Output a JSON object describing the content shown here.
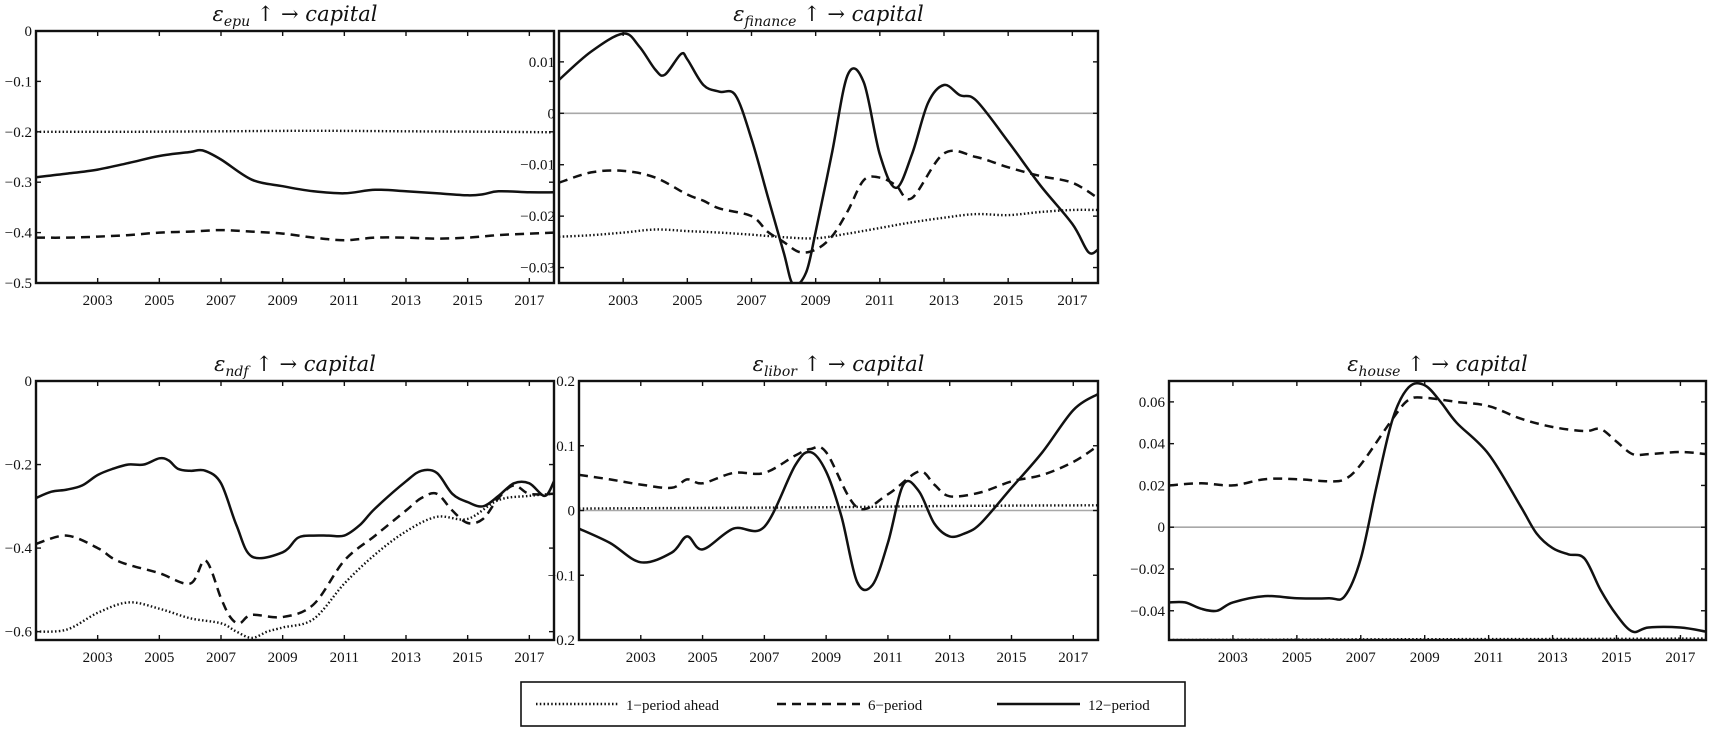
{
  "legend": {
    "entries": [
      {
        "label": "1−period ahead",
        "style": "dotted"
      },
      {
        "label": "6−period",
        "style": "dashed"
      },
      {
        "label": "12−period",
        "style": "solid"
      }
    ]
  },
  "colors": {
    "line": "#111111",
    "zero_line": "#a8a8a8",
    "frame": "#111111"
  },
  "chart_data": [
    {
      "type": "line",
      "title": {
        "prefix": "ε",
        "sub": "epu",
        "suffix": " ↑ →  capital"
      },
      "xlim": [
        2001,
        2017.8
      ],
      "ylim": [
        -0.5,
        0
      ],
      "yticks": [
        0,
        -0.1,
        -0.2,
        -0.3,
        -0.4,
        -0.5
      ],
      "yticklabels": [
        "0",
        "−0.1",
        "−0.2",
        "−0.3",
        "−0.4",
        "−0.5"
      ],
      "xticks": [
        2003,
        2005,
        2007,
        2009,
        2011,
        2013,
        2015,
        2017
      ],
      "zero_line": false,
      "series": [
        {
          "style": "dotted",
          "x": [
            2001,
            2004,
            2007,
            2010,
            2013,
            2016,
            2017.8
          ],
          "y": [
            -0.2,
            -0.2,
            -0.199,
            -0.198,
            -0.199,
            -0.2,
            -0.201
          ]
        },
        {
          "style": "dashed",
          "x": [
            2001,
            2002,
            2003,
            2004,
            2005,
            2006,
            2007,
            2008,
            2009,
            2010,
            2011,
            2012,
            2013,
            2014,
            2015,
            2016,
            2017,
            2017.8
          ],
          "y": [
            -0.41,
            -0.41,
            -0.408,
            -0.405,
            -0.4,
            -0.398,
            -0.395,
            -0.398,
            -0.402,
            -0.41,
            -0.415,
            -0.41,
            -0.41,
            -0.412,
            -0.41,
            -0.405,
            -0.402,
            -0.4
          ]
        },
        {
          "style": "solid",
          "x": [
            2001,
            2002,
            2003,
            2004,
            2005,
            2006,
            2006.4,
            2007,
            2008,
            2009,
            2010,
            2011,
            2012,
            2013,
            2014,
            2015,
            2015.5,
            2016,
            2017,
            2017.8
          ],
          "y": [
            -0.29,
            -0.283,
            -0.275,
            -0.262,
            -0.248,
            -0.24,
            -0.237,
            -0.255,
            -0.295,
            -0.308,
            -0.318,
            -0.322,
            -0.315,
            -0.318,
            -0.322,
            -0.326,
            -0.324,
            -0.318,
            -0.32,
            -0.32
          ]
        }
      ]
    },
    {
      "type": "line",
      "title": {
        "prefix": "ε",
        "sub": "finance",
        "suffix": " ↑ →  capital"
      },
      "xlim": [
        2001,
        2017.8
      ],
      "ylim": [
        -0.033,
        0.016
      ],
      "yticks": [
        0.01,
        0,
        -0.01,
        -0.02,
        -0.03
      ],
      "yticklabels": [
        "0.01",
        "0",
        "−0.01",
        "−0.02",
        "−0.03"
      ],
      "xticks": [
        2003,
        2005,
        2007,
        2009,
        2011,
        2013,
        2015,
        2017
      ],
      "zero_line": true,
      "series": [
        {
          "style": "dotted",
          "x": [
            2001,
            2002,
            2003,
            2004,
            2005,
            2006,
            2007,
            2008,
            2009,
            2010,
            2011,
            2012,
            2013,
            2014,
            2015,
            2016,
            2017,
            2017.8
          ],
          "y": [
            -0.024,
            -0.0237,
            -0.0232,
            -0.0226,
            -0.0229,
            -0.0232,
            -0.0236,
            -0.0241,
            -0.0243,
            -0.0234,
            -0.0223,
            -0.0212,
            -0.0203,
            -0.0196,
            -0.0198,
            -0.0192,
            -0.0188,
            -0.0188
          ]
        },
        {
          "style": "dashed",
          "x": [
            2001,
            2002,
            2003,
            2004,
            2005,
            2005.5,
            2006,
            2007,
            2007.5,
            2008,
            2008.5,
            2009,
            2009.5,
            2010,
            2010.5,
            2011,
            2011.5,
            2012,
            2013,
            2014,
            2015,
            2016,
            2017,
            2017.8
          ],
          "y": [
            -0.0135,
            -0.0115,
            -0.0112,
            -0.0125,
            -0.0158,
            -0.017,
            -0.0185,
            -0.02,
            -0.023,
            -0.025,
            -0.027,
            -0.0265,
            -0.024,
            -0.019,
            -0.013,
            -0.0125,
            -0.014,
            -0.0165,
            -0.0078,
            -0.0085,
            -0.0105,
            -0.0122,
            -0.0135,
            -0.0165
          ]
        },
        {
          "style": "solid",
          "x": [
            2001,
            2002,
            2003,
            2003.5,
            2004,
            2004.3,
            2004.8,
            2005,
            2005.5,
            2006,
            2006.5,
            2007,
            2007.5,
            2008,
            2008.3,
            2008.7,
            2009,
            2009.5,
            2010,
            2010.5,
            2011,
            2011.5,
            2012,
            2012.5,
            2013,
            2013.5,
            2014,
            2015,
            2016,
            2017,
            2017.5,
            2017.8
          ],
          "y": [
            0.0065,
            0.012,
            0.0155,
            0.013,
            0.0085,
            0.0075,
            0.0115,
            0.0105,
            0.0055,
            0.0042,
            0.0035,
            -0.005,
            -0.016,
            -0.027,
            -0.0333,
            -0.031,
            -0.023,
            -0.008,
            0.0075,
            0.006,
            -0.008,
            -0.0145,
            -0.008,
            0.002,
            0.0055,
            0.0035,
            0.0025,
            -0.0055,
            -0.014,
            -0.0215,
            -0.027,
            -0.0265
          ]
        }
      ]
    },
    {
      "type": "line",
      "title": {
        "prefix": "ε",
        "sub": "ndf",
        "suffix": " ↑ →  capital"
      },
      "xlim": [
        2001,
        2017.8
      ],
      "ylim": [
        -0.62,
        0
      ],
      "yticks": [
        0,
        -0.2,
        -0.4,
        -0.6
      ],
      "yticklabels": [
        "0",
        "−0.2",
        "−0.4",
        "−0.6"
      ],
      "xticks": [
        2003,
        2005,
        2007,
        2009,
        2011,
        2013,
        2015,
        2017
      ],
      "zero_line": false,
      "series": [
        {
          "style": "dotted",
          "x": [
            2001,
            2002,
            2003,
            2004,
            2005,
            2006,
            2007,
            2007.5,
            2008,
            2008.5,
            2009,
            2010,
            2011,
            2012,
            2013,
            2014,
            2015,
            2016,
            2017,
            2017.8
          ],
          "y": [
            -0.6,
            -0.595,
            -0.555,
            -0.53,
            -0.545,
            -0.568,
            -0.58,
            -0.6,
            -0.615,
            -0.6,
            -0.59,
            -0.57,
            -0.485,
            -0.415,
            -0.36,
            -0.325,
            -0.33,
            -0.285,
            -0.275,
            -0.27
          ]
        },
        {
          "style": "dashed",
          "x": [
            2001,
            2002,
            2003,
            2003.5,
            2004,
            2005,
            2006,
            2006.5,
            2007,
            2007.3,
            2007.6,
            2008,
            2009,
            2010,
            2011,
            2012,
            2013,
            2013.5,
            2014,
            2014.5,
            2015,
            2015.5,
            2016,
            2016.5,
            2017,
            2017.8
          ],
          "y": [
            -0.39,
            -0.37,
            -0.4,
            -0.425,
            -0.44,
            -0.46,
            -0.485,
            -0.43,
            -0.52,
            -0.565,
            -0.58,
            -0.56,
            -0.565,
            -0.535,
            -0.43,
            -0.37,
            -0.31,
            -0.28,
            -0.27,
            -0.31,
            -0.34,
            -0.33,
            -0.28,
            -0.25,
            -0.27,
            -0.27
          ]
        },
        {
          "style": "solid",
          "x": [
            2001,
            2001.5,
            2002,
            2002.5,
            2003,
            2003.5,
            2004,
            2004.5,
            2005,
            2005.3,
            2005.6,
            2006,
            2006.5,
            2007,
            2007.5,
            2008,
            2009,
            2009.5,
            2010,
            2010.5,
            2011,
            2011.5,
            2012,
            2013,
            2013.5,
            2014,
            2014.5,
            2015,
            2015.5,
            2016,
            2016.5,
            2017,
            2017.5,
            2017.8
          ],
          "y": [
            -0.28,
            -0.265,
            -0.26,
            -0.25,
            -0.225,
            -0.21,
            -0.2,
            -0.2,
            -0.185,
            -0.19,
            -0.21,
            -0.215,
            -0.215,
            -0.245,
            -0.345,
            -0.42,
            -0.41,
            -0.375,
            -0.37,
            -0.37,
            -0.37,
            -0.345,
            -0.305,
            -0.24,
            -0.215,
            -0.22,
            -0.27,
            -0.29,
            -0.3,
            -0.275,
            -0.245,
            -0.245,
            -0.275,
            -0.24
          ]
        }
      ]
    },
    {
      "type": "line",
      "title": {
        "prefix": "ε",
        "sub": "libor",
        "suffix": " ↑ →  capital"
      },
      "xlim": [
        2001,
        2017.8
      ],
      "ylim": [
        -0.2,
        0.2
      ],
      "yticks": [
        0.2,
        0.1,
        0,
        -0.1,
        -0.2
      ],
      "yticklabels": [
        "0.2",
        "0.1",
        "0",
        "−0.1",
        "−0.2"
      ],
      "xticks": [
        2003,
        2005,
        2007,
        2009,
        2011,
        2013,
        2015,
        2017
      ],
      "zero_line": true,
      "series": [
        {
          "style": "dotted",
          "x": [
            2001,
            2005,
            2009,
            2013,
            2017.8
          ],
          "y": [
            0.003,
            0.004,
            0.005,
            0.007,
            0.008
          ]
        },
        {
          "style": "dashed",
          "x": [
            2001,
            2002,
            2003,
            2004,
            2004.5,
            2005,
            2006,
            2007,
            2008,
            2008.5,
            2009,
            2010,
            2011,
            2012,
            2012.5,
            2013,
            2014,
            2015,
            2016,
            2017,
            2017.8
          ],
          "y": [
            0.055,
            0.048,
            0.04,
            0.035,
            0.048,
            0.042,
            0.058,
            0.058,
            0.085,
            0.095,
            0.09,
            0.005,
            0.025,
            0.06,
            0.04,
            0.022,
            0.028,
            0.045,
            0.055,
            0.075,
            0.1
          ]
        },
        {
          "style": "solid",
          "x": [
            2001,
            2002,
            2003,
            2004,
            2004.5,
            2005,
            2006,
            2007,
            2008,
            2008.5,
            2009,
            2009.5,
            2010,
            2010.5,
            2011,
            2011.5,
            2012,
            2012.5,
            2013,
            2013.5,
            2014,
            2015,
            2016,
            2017,
            2017.8
          ],
          "y": [
            -0.028,
            -0.05,
            -0.08,
            -0.065,
            -0.04,
            -0.06,
            -0.028,
            -0.025,
            0.07,
            0.09,
            0.06,
            -0.01,
            -0.11,
            -0.115,
            -0.05,
            0.04,
            0.03,
            -0.02,
            -0.04,
            -0.035,
            -0.02,
            0.035,
            0.09,
            0.155,
            0.18
          ]
        }
      ]
    },
    {
      "type": "line",
      "title": {
        "prefix": "ε",
        "sub": "house",
        "suffix": " ↑ →  capital"
      },
      "xlim": [
        2001,
        2017.8
      ],
      "ylim": [
        -0.054,
        0.07
      ],
      "yticks": [
        0.06,
        0.04,
        0.02,
        0,
        -0.02,
        -0.04
      ],
      "yticklabels": [
        "0.06",
        "0.04",
        "0.02",
        "0",
        "−0.02",
        "−0.04"
      ],
      "xticks": [
        2003,
        2005,
        2007,
        2009,
        2011,
        2013,
        2015,
        2017
      ],
      "zero_line": true,
      "series": [
        {
          "style": "dotted",
          "x": [
            2001,
            2005,
            2009,
            2013,
            2017.8
          ],
          "y": [
            -0.054,
            -0.0538,
            -0.0536,
            -0.0535,
            -0.0533
          ]
        },
        {
          "style": "dashed",
          "x": [
            2001,
            2002,
            2003,
            2004,
            2005,
            2006,
            2006.5,
            2007,
            2008,
            2008.5,
            2009,
            2010,
            2011,
            2012,
            2013,
            2014,
            2014.5,
            2015,
            2015.5,
            2016,
            2017,
            2017.8
          ],
          "y": [
            0.02,
            0.021,
            0.02,
            0.023,
            0.023,
            0.022,
            0.023,
            0.03,
            0.052,
            0.061,
            0.062,
            0.06,
            0.058,
            0.052,
            0.048,
            0.046,
            0.047,
            0.041,
            0.035,
            0.035,
            0.036,
            0.035
          ]
        },
        {
          "style": "solid",
          "x": [
            2001,
            2001.5,
            2002,
            2002.5,
            2003,
            2004,
            2005,
            2006,
            2006.5,
            2007,
            2007.5,
            2008,
            2008.5,
            2009,
            2009.5,
            2010,
            2011,
            2012,
            2012.5,
            2013,
            2013.5,
            2014,
            2014.5,
            2015,
            2015.5,
            2016,
            2017,
            2017.8
          ],
          "y": [
            -0.036,
            -0.036,
            -0.039,
            -0.04,
            -0.036,
            -0.033,
            -0.034,
            -0.034,
            -0.033,
            -0.015,
            0.02,
            0.052,
            0.067,
            0.068,
            0.06,
            0.05,
            0.035,
            0.01,
            -0.003,
            -0.01,
            -0.013,
            -0.015,
            -0.03,
            -0.042,
            -0.05,
            -0.048,
            -0.048,
            -0.05
          ]
        }
      ]
    }
  ]
}
